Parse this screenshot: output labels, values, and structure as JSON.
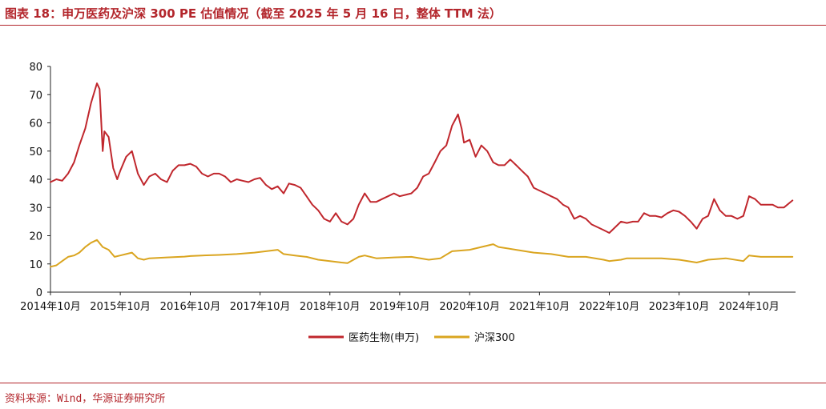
{
  "header": {
    "title": "图表 18：申万医药及沪深 300 PE 估值情况（截至 2025 年 5 月 16 日，整体 TTM 法）"
  },
  "footer": {
    "source": "资料来源：Wind，华源证券研究所"
  },
  "colors": {
    "accent": "#b3262c",
    "pharma": "#c0272d",
    "hs300": "#daa520"
  },
  "chart_data": {
    "type": "line",
    "title": "",
    "xlabel": "",
    "ylabel": "",
    "ylim": [
      0,
      80
    ],
    "yticks": [
      "0",
      "10",
      "20",
      "30",
      "40",
      "50",
      "60",
      "70",
      "80"
    ],
    "xticks": [
      {
        "label": "2014年10月",
        "date": "2014-10"
      },
      {
        "label": "2015年10月",
        "date": "2015-10"
      },
      {
        "label": "2016年10月",
        "date": "2016-10"
      },
      {
        "label": "2017年10月",
        "date": "2017-10"
      },
      {
        "label": "2018年10月",
        "date": "2018-10"
      },
      {
        "label": "2019年10月",
        "date": "2019-10"
      },
      {
        "label": "2020年10月",
        "date": "2020-10"
      },
      {
        "label": "2021年10月",
        "date": "2021-10"
      },
      {
        "label": "2022年10月",
        "date": "2022-10"
      },
      {
        "label": "2023年10月",
        "date": "2023-10"
      },
      {
        "label": "2024年10月",
        "date": "2024-10"
      }
    ],
    "legend_position": "bottom-center",
    "grid": false,
    "series": [
      {
        "name": "医药生物(申万)",
        "color": "#c0272d",
        "points": [
          [
            "2014-10-01",
            39
          ],
          [
            "2014-11-01",
            40
          ],
          [
            "2014-12-01",
            39.5
          ],
          [
            "2015-01-01",
            42
          ],
          [
            "2015-02-01",
            46
          ],
          [
            "2015-03-01",
            52
          ],
          [
            "2015-04-01",
            58
          ],
          [
            "2015-05-01",
            67
          ],
          [
            "2015-06-01",
            74
          ],
          [
            "2015-06-15",
            72
          ],
          [
            "2015-07-01",
            50
          ],
          [
            "2015-07-10",
            57
          ],
          [
            "2015-08-01",
            55
          ],
          [
            "2015-08-25",
            44
          ],
          [
            "2015-09-15",
            40
          ],
          [
            "2015-10-01",
            43
          ],
          [
            "2015-11-01",
            48
          ],
          [
            "2015-12-01",
            50
          ],
          [
            "2016-01-01",
            42
          ],
          [
            "2016-02-01",
            38
          ],
          [
            "2016-03-01",
            41
          ],
          [
            "2016-04-01",
            42
          ],
          [
            "2016-05-01",
            40
          ],
          [
            "2016-06-01",
            39
          ],
          [
            "2016-07-01",
            43
          ],
          [
            "2016-08-01",
            45
          ],
          [
            "2016-09-01",
            45
          ],
          [
            "2016-10-01",
            45.5
          ],
          [
            "2016-11-01",
            44.5
          ],
          [
            "2016-12-01",
            42
          ],
          [
            "2017-01-01",
            41
          ],
          [
            "2017-02-01",
            42
          ],
          [
            "2017-03-01",
            42
          ],
          [
            "2017-04-01",
            41
          ],
          [
            "2017-05-01",
            39
          ],
          [
            "2017-06-01",
            40
          ],
          [
            "2017-07-01",
            39.5
          ],
          [
            "2017-08-01",
            39
          ],
          [
            "2017-09-01",
            40
          ],
          [
            "2017-10-01",
            40.5
          ],
          [
            "2017-11-01",
            38
          ],
          [
            "2017-12-01",
            36.5
          ],
          [
            "2018-01-01",
            37.5
          ],
          [
            "2018-02-01",
            35
          ],
          [
            "2018-03-01",
            38.5
          ],
          [
            "2018-04-01",
            38
          ],
          [
            "2018-05-01",
            37
          ],
          [
            "2018-06-01",
            34
          ],
          [
            "2018-07-01",
            31
          ],
          [
            "2018-08-01",
            29
          ],
          [
            "2018-09-01",
            26
          ],
          [
            "2018-10-01",
            25
          ],
          [
            "2018-11-01",
            28
          ],
          [
            "2018-12-01",
            25
          ],
          [
            "2019-01-01",
            24
          ],
          [
            "2019-02-01",
            26
          ],
          [
            "2019-03-01",
            31
          ],
          [
            "2019-04-01",
            35
          ],
          [
            "2019-05-01",
            32
          ],
          [
            "2019-06-01",
            32
          ],
          [
            "2019-07-01",
            33
          ],
          [
            "2019-08-01",
            34
          ],
          [
            "2019-09-01",
            35
          ],
          [
            "2019-10-01",
            34
          ],
          [
            "2019-11-01",
            34.5
          ],
          [
            "2019-12-01",
            35
          ],
          [
            "2020-01-01",
            37
          ],
          [
            "2020-02-01",
            41
          ],
          [
            "2020-03-01",
            42
          ],
          [
            "2020-04-01",
            46
          ],
          [
            "2020-05-01",
            50
          ],
          [
            "2020-06-01",
            52
          ],
          [
            "2020-07-01",
            59
          ],
          [
            "2020-08-01",
            63
          ],
          [
            "2020-08-20",
            58
          ],
          [
            "2020-09-01",
            53
          ],
          [
            "2020-10-01",
            54
          ],
          [
            "2020-11-01",
            48
          ],
          [
            "2020-12-01",
            52
          ],
          [
            "2021-01-01",
            50
          ],
          [
            "2021-02-01",
            46
          ],
          [
            "2021-03-01",
            45
          ],
          [
            "2021-04-01",
            45
          ],
          [
            "2021-05-01",
            47
          ],
          [
            "2021-06-01",
            45
          ],
          [
            "2021-07-01",
            43
          ],
          [
            "2021-08-01",
            41
          ],
          [
            "2021-09-01",
            37
          ],
          [
            "2021-10-01",
            36
          ],
          [
            "2021-11-01",
            35
          ],
          [
            "2021-12-01",
            34
          ],
          [
            "2022-01-01",
            33
          ],
          [
            "2022-02-01",
            31
          ],
          [
            "2022-03-01",
            30
          ],
          [
            "2022-04-01",
            26
          ],
          [
            "2022-05-01",
            27
          ],
          [
            "2022-06-01",
            26
          ],
          [
            "2022-07-01",
            24
          ],
          [
            "2022-08-01",
            23
          ],
          [
            "2022-09-01",
            22
          ],
          [
            "2022-10-01",
            21
          ],
          [
            "2022-11-01",
            23
          ],
          [
            "2022-12-01",
            25
          ],
          [
            "2023-01-01",
            24.5
          ],
          [
            "2023-02-01",
            25
          ],
          [
            "2023-03-01",
            25
          ],
          [
            "2023-04-01",
            28
          ],
          [
            "2023-05-01",
            27
          ],
          [
            "2023-06-01",
            27
          ],
          [
            "2023-07-01",
            26.5
          ],
          [
            "2023-08-01",
            28
          ],
          [
            "2023-09-01",
            29
          ],
          [
            "2023-10-01",
            28.5
          ],
          [
            "2023-11-01",
            27
          ],
          [
            "2023-12-01",
            25
          ],
          [
            "2024-01-01",
            22.5
          ],
          [
            "2024-02-01",
            26
          ],
          [
            "2024-03-01",
            27
          ],
          [
            "2024-04-01",
            33
          ],
          [
            "2024-05-01",
            29
          ],
          [
            "2024-06-01",
            27
          ],
          [
            "2024-07-01",
            27
          ],
          [
            "2024-08-01",
            26
          ],
          [
            "2024-09-01",
            27
          ],
          [
            "2024-10-01",
            34
          ],
          [
            "2024-11-01",
            33
          ],
          [
            "2024-12-01",
            31
          ],
          [
            "2025-01-01",
            31
          ],
          [
            "2025-02-01",
            31
          ],
          [
            "2025-03-01",
            30
          ],
          [
            "2025-04-01",
            30
          ],
          [
            "2025-05-16",
            32.5
          ]
        ]
      },
      {
        "name": "沪深300",
        "color": "#daa520",
        "points": [
          [
            "2014-10-01",
            9
          ],
          [
            "2014-11-01",
            9.5
          ],
          [
            "2014-12-01",
            11
          ],
          [
            "2015-01-01",
            12.5
          ],
          [
            "2015-02-01",
            13
          ],
          [
            "2015-03-01",
            14
          ],
          [
            "2015-04-01",
            16
          ],
          [
            "2015-05-01",
            17.5
          ],
          [
            "2015-06-01",
            18.5
          ],
          [
            "2015-07-01",
            16
          ],
          [
            "2015-08-01",
            15
          ],
          [
            "2015-09-01",
            12.5
          ],
          [
            "2015-10-01",
            13
          ],
          [
            "2015-11-01",
            13.5
          ],
          [
            "2015-12-01",
            14
          ],
          [
            "2016-01-01",
            12
          ],
          [
            "2016-02-01",
            11.5
          ],
          [
            "2016-03-01",
            12
          ],
          [
            "2016-06-01",
            12.3
          ],
          [
            "2016-09-01",
            12.6
          ],
          [
            "2016-10-01",
            12.8
          ],
          [
            "2016-12-01",
            13
          ],
          [
            "2017-03-01",
            13.2
          ],
          [
            "2017-06-01",
            13.5
          ],
          [
            "2017-09-01",
            14
          ],
          [
            "2017-11-01",
            14.5
          ],
          [
            "2018-01-01",
            15
          ],
          [
            "2018-02-01",
            13.5
          ],
          [
            "2018-04-01",
            13
          ],
          [
            "2018-06-01",
            12.5
          ],
          [
            "2018-08-01",
            11.5
          ],
          [
            "2018-10-01",
            11
          ],
          [
            "2018-12-01",
            10.5
          ],
          [
            "2019-01-01",
            10.3
          ],
          [
            "2019-03-01",
            12.5
          ],
          [
            "2019-04-01",
            13
          ],
          [
            "2019-06-01",
            12
          ],
          [
            "2019-09-01",
            12.3
          ],
          [
            "2019-12-01",
            12.5
          ],
          [
            "2020-03-01",
            11.5
          ],
          [
            "2020-05-01",
            12
          ],
          [
            "2020-07-01",
            14.5
          ],
          [
            "2020-10-01",
            15
          ],
          [
            "2020-12-01",
            16
          ],
          [
            "2021-02-01",
            17
          ],
          [
            "2021-03-01",
            16
          ],
          [
            "2021-06-01",
            15
          ],
          [
            "2021-09-01",
            14
          ],
          [
            "2021-12-01",
            13.5
          ],
          [
            "2022-03-01",
            12.5
          ],
          [
            "2022-06-01",
            12.5
          ],
          [
            "2022-09-01",
            11.5
          ],
          [
            "2022-10-01",
            11
          ],
          [
            "2022-12-01",
            11.5
          ],
          [
            "2023-01-01",
            12
          ],
          [
            "2023-04-01",
            12
          ],
          [
            "2023-07-01",
            12
          ],
          [
            "2023-10-01",
            11.5
          ],
          [
            "2024-01-01",
            10.5
          ],
          [
            "2024-03-01",
            11.5
          ],
          [
            "2024-06-01",
            12
          ],
          [
            "2024-09-01",
            11
          ],
          [
            "2024-10-01",
            13
          ],
          [
            "2024-12-01",
            12.5
          ],
          [
            "2025-03-01",
            12.5
          ],
          [
            "2025-05-16",
            12.5
          ]
        ]
      }
    ]
  }
}
